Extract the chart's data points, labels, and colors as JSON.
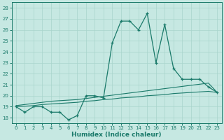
{
  "xlabel": "Humidex (Indice chaleur)",
  "ylabel": "",
  "xlim": [
    -0.5,
    23.5
  ],
  "ylim": [
    17.5,
    28.5
  ],
  "yticks": [
    18,
    19,
    20,
    21,
    22,
    23,
    24,
    25,
    26,
    27,
    28
  ],
  "xticks": [
    0,
    1,
    2,
    3,
    4,
    5,
    6,
    7,
    8,
    9,
    10,
    11,
    12,
    13,
    14,
    15,
    16,
    17,
    18,
    19,
    20,
    21,
    22,
    23
  ],
  "bg_color": "#c6e8e2",
  "line_color": "#1a7a6a",
  "grid_color": "#a8d4cc",
  "main_y": [
    19.0,
    18.5,
    19.0,
    19.0,
    18.5,
    18.5,
    17.8,
    18.2,
    20.0,
    20.0,
    19.8,
    24.8,
    26.8,
    26.8,
    26.0,
    27.5,
    23.0,
    26.5,
    22.5,
    21.5,
    21.5,
    21.5,
    20.8,
    20.3
  ],
  "trend1_y": [
    19.0,
    19.05,
    19.1,
    19.2,
    19.25,
    19.3,
    19.35,
    19.4,
    19.5,
    19.55,
    19.65,
    19.7,
    19.8,
    19.85,
    19.9,
    20.0,
    20.05,
    20.1,
    20.2,
    20.25,
    20.3,
    20.35,
    20.4,
    20.3
  ],
  "trend2_y": [
    19.1,
    19.2,
    19.3,
    19.4,
    19.5,
    19.55,
    19.6,
    19.65,
    19.75,
    19.85,
    19.95,
    20.05,
    20.15,
    20.25,
    20.35,
    20.45,
    20.55,
    20.65,
    20.75,
    20.85,
    20.95,
    21.05,
    21.15,
    20.3
  ],
  "tick_fontsize": 5.0,
  "xlabel_fontsize": 6.5,
  "lw_main": 0.9,
  "lw_trend": 0.8
}
